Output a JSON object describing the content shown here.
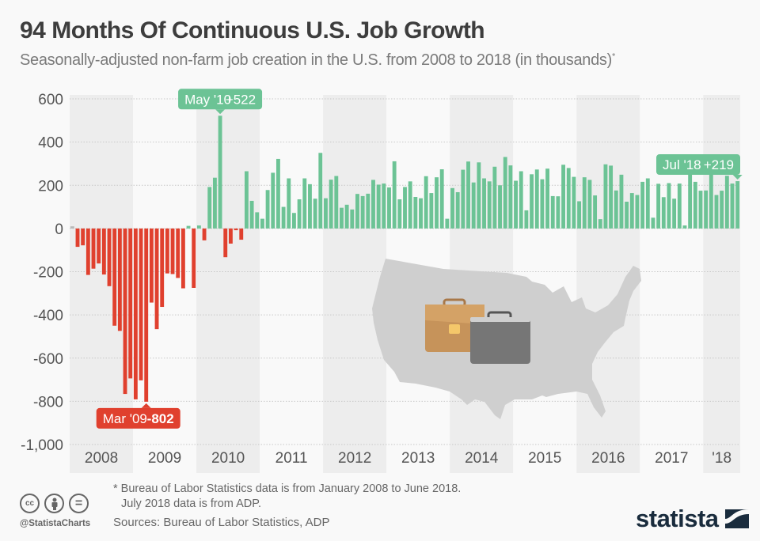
{
  "header": {
    "title": "94 Months Of Continuous U.S. Job Growth",
    "subtitle": "Seasonally-adjusted non-farm job creation in the U.S. from 2008 to 2018 (in thousands)",
    "subtitle_mark": "*"
  },
  "colors": {
    "positive": "#6cc395",
    "negative": "#e0402e",
    "band": "#ededed",
    "map": "#cfcfcf",
    "brand": "#1a2c3d"
  },
  "chart_data": {
    "type": "bar",
    "title": "94 Months Of Continuous U.S. Job Growth",
    "xlabel": "",
    "ylabel": "",
    "ylim": [
      -1000,
      600
    ],
    "yticks": [
      600,
      400,
      200,
      0,
      -200,
      -400,
      -600,
      -800,
      -1000
    ],
    "ytick_labels": [
      "600",
      "400",
      "200",
      "0",
      "-200",
      "-400",
      "-600",
      "-800",
      "-1,000"
    ],
    "grid": true,
    "start": "Jan 2008",
    "end": "Jul 2018",
    "years": [
      {
        "label": "2008",
        "months": 12
      },
      {
        "label": "2009",
        "months": 12
      },
      {
        "label": "2010",
        "months": 12
      },
      {
        "label": "2011",
        "months": 12
      },
      {
        "label": "2012",
        "months": 12
      },
      {
        "label": "2013",
        "months": 12
      },
      {
        "label": "2014",
        "months": 12
      },
      {
        "label": "2015",
        "months": 12
      },
      {
        "label": "2016",
        "months": 12
      },
      {
        "label": "2017",
        "months": 12
      },
      {
        "label": "'18",
        "months": 7
      }
    ],
    "values": [
      10,
      -85,
      -78,
      -215,
      -186,
      -162,
      -213,
      -267,
      -450,
      -474,
      -766,
      -694,
      -791,
      -703,
      -802,
      -343,
      -466,
      -363,
      -208,
      -211,
      -229,
      -277,
      12,
      -275,
      14,
      -55,
      192,
      235,
      522,
      -133,
      -70,
      -8,
      -52,
      265,
      128,
      75,
      45,
      178,
      258,
      322,
      100,
      232,
      72,
      135,
      232,
      205,
      138,
      350,
      140,
      226,
      243,
      96,
      110,
      88,
      160,
      150,
      161,
      225,
      203,
      208,
      190,
      311,
      135,
      192,
      218,
      146,
      140,
      242,
      164,
      237,
      274,
      45,
      187,
      168,
      272,
      310,
      213,
      306,
      232,
      218,
      286,
      200,
      331,
      292,
      221,
      265,
      84,
      251,
      273,
      228,
      277,
      150,
      149,
      295,
      280,
      239,
      126,
      237,
      225,
      153,
      43,
      297,
      291,
      176,
      249,
      124,
      164,
      155,
      216,
      232,
      50,
      207,
      145,
      210,
      138,
      208,
      14,
      271,
      216,
      175,
      176,
      324,
      155,
      175,
      244,
      208,
      219
    ],
    "annotations": [
      {
        "label": "May '10",
        "value_label": "+522",
        "month_index": 28,
        "value": 522,
        "color": "positive"
      },
      {
        "label": "Mar '09",
        "value_label": "-802",
        "month_index": 14,
        "value": -802,
        "color": "negative"
      },
      {
        "label": "Jul '18",
        "value_label": "+219",
        "month_index": 126,
        "value": 219,
        "color": "positive"
      }
    ]
  },
  "footer": {
    "footnote_line1": "* Bureau of Labor Statistics data is from January 2008 to June 2018.",
    "footnote_line2": "July 2018 data is from ADP.",
    "sources": "Sources: Bureau of Labor Statistics, ADP",
    "handle": "@StatistaCharts",
    "brand": "statista",
    "license_icons": [
      "cc",
      "by",
      "nd"
    ],
    "license_labels": {
      "cc": "cc",
      "nd": "="
    }
  }
}
